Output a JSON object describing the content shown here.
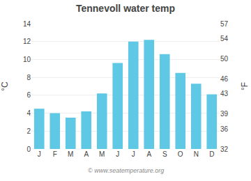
{
  "chart_data": {
    "type": "bar",
    "title": "Tennevoll water temp",
    "categories": [
      "J",
      "F",
      "M",
      "A",
      "M",
      "J",
      "J",
      "A",
      "S",
      "O",
      "N",
      "D"
    ],
    "values": [
      4.5,
      4.0,
      3.5,
      4.2,
      6.2,
      9.6,
      12.0,
      12.2,
      10.6,
      8.5,
      7.3,
      6.1
    ],
    "color": "#5ec8e5",
    "ylabel": "°C",
    "y2label": "°F",
    "ylim": [
      0,
      14
    ],
    "yticks": [
      0,
      2,
      4,
      6,
      8,
      10,
      12,
      14
    ],
    "y2lim": [
      32,
      57
    ],
    "y2ticks": [
      32,
      36,
      39,
      43,
      46,
      50,
      54,
      57
    ],
    "grid": true,
    "annotations": [
      "© www.seatemperature.org"
    ]
  }
}
